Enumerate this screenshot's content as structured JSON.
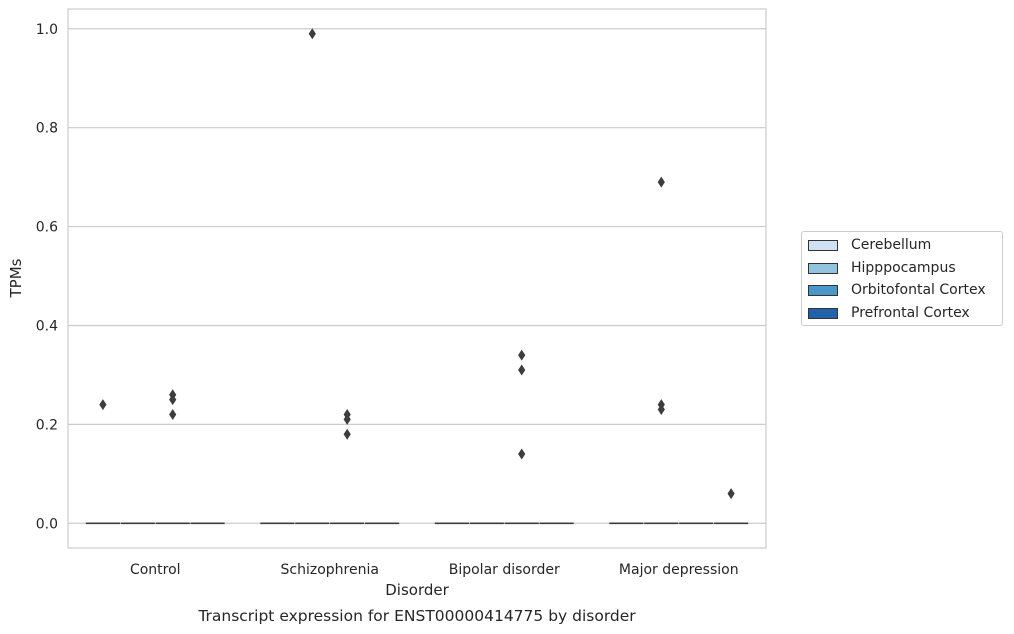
{
  "chart_data": {
    "type": "box",
    "title": "Transcript expression for ENST00000414775 by disorder",
    "xlabel": "Disorder",
    "ylabel": "TPMs",
    "categories": [
      "Control",
      "Schizophrenia",
      "Bipolar disorder",
      "Major depression"
    ],
    "ylim": [
      -0.05,
      1.04
    ],
    "yticks": [
      0.0,
      0.2,
      0.4,
      0.6,
      0.8,
      1.0
    ],
    "ytick_labels": [
      "0.0",
      "0.2",
      "0.4",
      "0.6",
      "0.8",
      "1.0"
    ],
    "grid": "horizontal",
    "legend_position": "right",
    "series": [
      {
        "name": "Cerebellum",
        "color": "#cfe1f2",
        "median": [
          0,
          0,
          0,
          0
        ],
        "outliers": [
          [
            0.24
          ],
          [],
          [],
          []
        ]
      },
      {
        "name": "Hipppocampus",
        "color": "#93c4de",
        "median": [
          0,
          0,
          0,
          0
        ],
        "outliers": [
          [],
          [
            0.99
          ],
          [],
          [
            0.69,
            0.24,
            0.23
          ]
        ]
      },
      {
        "name": "Orbitofontal Cortex",
        "color": "#4a98c9",
        "median": [
          0,
          0,
          0,
          0
        ],
        "outliers": [
          [
            0.26,
            0.25,
            0.22
          ],
          [
            0.22,
            0.21,
            0.18
          ],
          [
            0.34,
            0.31,
            0.14
          ],
          []
        ]
      },
      {
        "name": "Prefrontal Cortex",
        "color": "#2163aa",
        "median": [
          0,
          0,
          0,
          0
        ],
        "outliers": [
          [],
          [],
          [],
          [
            0.06
          ]
        ]
      }
    ]
  }
}
